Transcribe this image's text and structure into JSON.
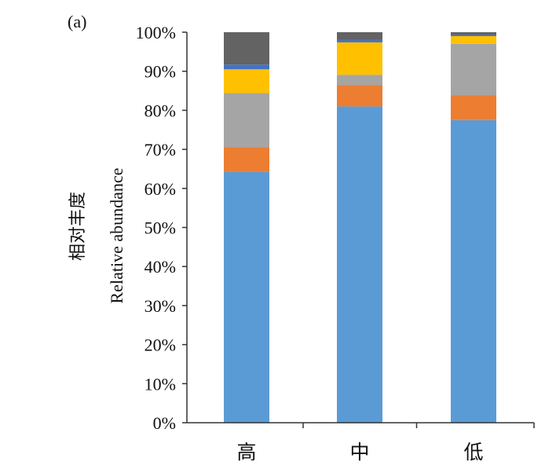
{
  "panel_label": "(a)",
  "chart_data": {
    "type": "bar",
    "stacked": true,
    "categories": [
      "高",
      "中",
      "低"
    ],
    "ylabel_cn": "相对丰度",
    "ylabel_en": "Relative abundance",
    "ylim": [
      0,
      100
    ],
    "yticks": [
      "0%",
      "10%",
      "20%",
      "30%",
      "40%",
      "50%",
      "60%",
      "70%",
      "80%",
      "90%",
      "100%"
    ],
    "grid": false,
    "legend": "none",
    "series": [
      {
        "color": "#5b9bd5",
        "values": [
          64.2,
          81.0,
          77.5
        ]
      },
      {
        "color": "#ed7d31",
        "values": [
          6.4,
          5.5,
          6.3
        ]
      },
      {
        "color": "#a5a5a5",
        "values": [
          13.8,
          2.6,
          13.2
        ]
      },
      {
        "color": "#ffc000",
        "values": [
          6.1,
          8.3,
          2.0
        ]
      },
      {
        "color": "#4472c4",
        "values": [
          1.2,
          0.6,
          0.4
        ]
      },
      {
        "color": "#636363",
        "values": [
          8.3,
          2.0,
          0.6
        ]
      }
    ]
  }
}
